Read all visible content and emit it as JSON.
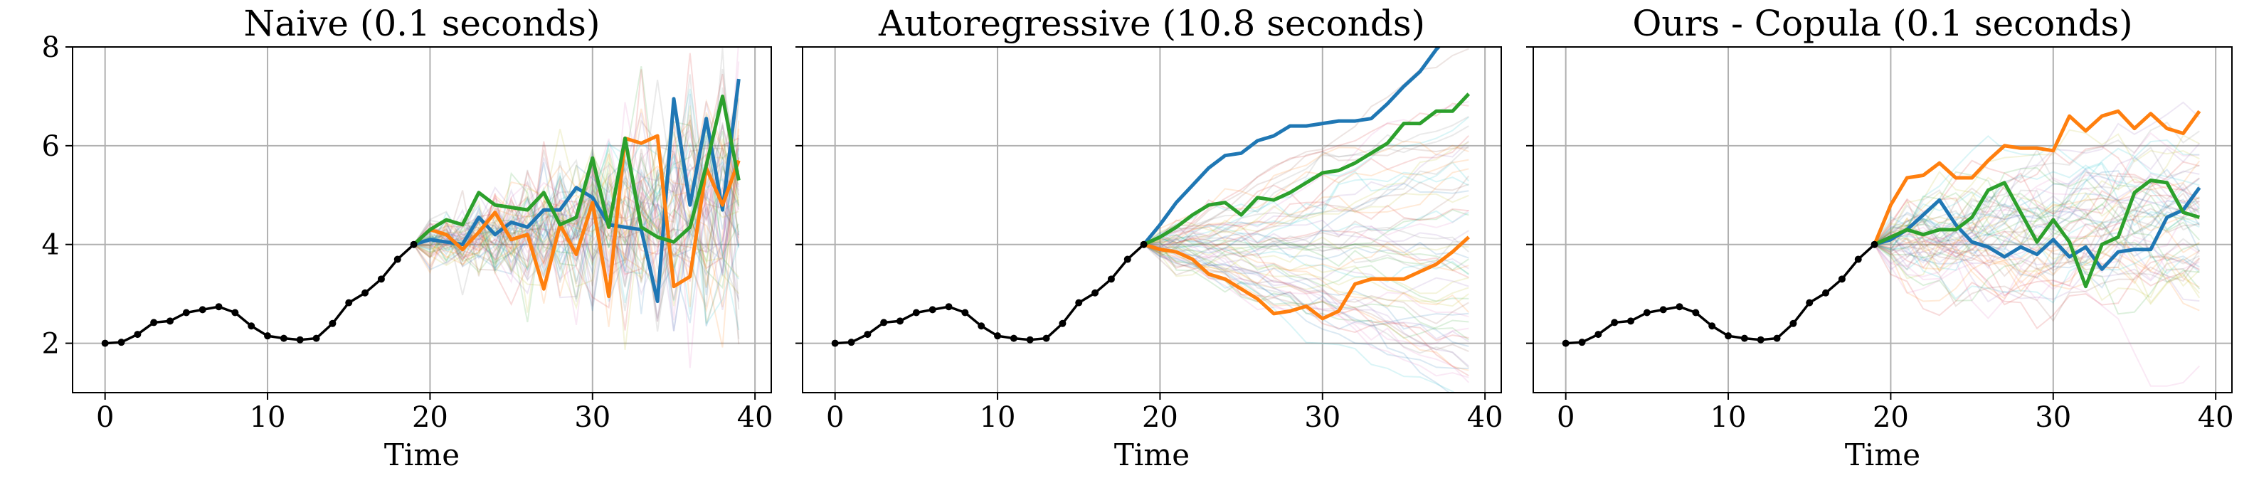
{
  "chart_data": [
    {
      "type": "line",
      "title": "Naive (0.1 seconds)",
      "xlabel": "Time",
      "ylabel": "",
      "xlim": [
        -2,
        41
      ],
      "ylim": [
        1,
        8
      ],
      "xticks": [
        0,
        10,
        20,
        30,
        40
      ],
      "yticks": [
        2,
        4,
        6,
        8
      ],
      "grid": true,
      "history": {
        "x": [
          0,
          1,
          2,
          3,
          4,
          5,
          6,
          7,
          8,
          9,
          10,
          11,
          12,
          13,
          14,
          15,
          16,
          17,
          18,
          19
        ],
        "y": [
          2.0,
          2.02,
          2.18,
          2.42,
          2.45,
          2.62,
          2.68,
          2.74,
          2.62,
          2.35,
          2.15,
          2.1,
          2.07,
          2.1,
          2.4,
          2.82,
          3.02,
          3.3,
          3.7,
          4.0
        ]
      },
      "forecast_x": [
        19,
        20,
        21,
        22,
        23,
        24,
        25,
        26,
        27,
        28,
        29,
        30,
        31,
        32,
        33,
        34,
        35,
        36,
        37,
        38,
        39
      ],
      "series": [
        {
          "color": "#1f77b4",
          "values": [
            4.0,
            4.1,
            4.05,
            4.0,
            4.55,
            4.2,
            4.45,
            4.35,
            4.7,
            4.7,
            5.15,
            4.95,
            4.4,
            4.35,
            4.3,
            2.85,
            6.95,
            4.8,
            6.55,
            4.7,
            7.35
          ]
        },
        {
          "color": "#ff7f0e",
          "values": [
            4.0,
            4.3,
            4.2,
            3.9,
            4.25,
            4.65,
            4.1,
            4.2,
            3.1,
            4.4,
            3.8,
            4.85,
            2.95,
            6.15,
            6.05,
            6.2,
            3.15,
            3.35,
            5.55,
            4.8,
            5.7
          ]
        },
        {
          "color": "#2ca02c",
          "values": [
            4.0,
            4.3,
            4.5,
            4.4,
            5.05,
            4.8,
            4.75,
            4.7,
            5.05,
            4.4,
            4.55,
            5.75,
            4.35,
            6.15,
            4.35,
            4.15,
            4.05,
            4.35,
            5.6,
            7.0,
            5.3
          ]
        }
      ]
    },
    {
      "type": "line",
      "title": "Autoregressive (10.8 seconds)",
      "xlabel": "Time",
      "ylabel": "",
      "xlim": [
        -2,
        41
      ],
      "ylim": [
        1,
        8
      ],
      "xticks": [
        0,
        10,
        20,
        30,
        40
      ],
      "yticks": [
        2,
        4,
        6,
        8
      ],
      "grid": true,
      "history": {
        "x": [
          0,
          1,
          2,
          3,
          4,
          5,
          6,
          7,
          8,
          9,
          10,
          11,
          12,
          13,
          14,
          15,
          16,
          17,
          18,
          19
        ],
        "y": [
          2.0,
          2.02,
          2.18,
          2.42,
          2.45,
          2.62,
          2.68,
          2.74,
          2.62,
          2.35,
          2.15,
          2.1,
          2.07,
          2.1,
          2.4,
          2.82,
          3.02,
          3.3,
          3.7,
          4.0
        ]
      },
      "forecast_x": [
        19,
        20,
        21,
        22,
        23,
        24,
        25,
        26,
        27,
        28,
        29,
        30,
        31,
        32,
        33,
        34,
        35,
        36,
        37,
        38,
        39
      ],
      "series": [
        {
          "color": "#1f77b4",
          "values": [
            4.0,
            4.4,
            4.85,
            5.2,
            5.55,
            5.8,
            5.85,
            6.1,
            6.2,
            6.4,
            6.4,
            6.45,
            6.5,
            6.5,
            6.55,
            6.85,
            7.2,
            7.5,
            7.95,
            8.3,
            8.6
          ]
        },
        {
          "color": "#ff7f0e",
          "values": [
            4.0,
            3.9,
            3.85,
            3.7,
            3.4,
            3.3,
            3.1,
            2.9,
            2.6,
            2.65,
            2.75,
            2.5,
            2.65,
            3.2,
            3.3,
            3.3,
            3.3,
            3.45,
            3.6,
            3.85,
            4.15
          ]
        },
        {
          "color": "#2ca02c",
          "values": [
            4.0,
            4.15,
            4.35,
            4.6,
            4.8,
            4.85,
            4.6,
            4.95,
            4.9,
            5.05,
            5.25,
            5.45,
            5.5,
            5.65,
            5.85,
            6.05,
            6.45,
            6.45,
            6.7,
            6.7,
            7.05
          ]
        }
      ]
    },
    {
      "type": "line",
      "title": "Ours - Copula (0.1 seconds)",
      "xlabel": "Time",
      "ylabel": "",
      "xlim": [
        -2,
        41
      ],
      "ylim": [
        1,
        8
      ],
      "xticks": [
        0,
        10,
        20,
        30,
        40
      ],
      "yticks": [
        2,
        4,
        6,
        8
      ],
      "grid": true,
      "history": {
        "x": [
          0,
          1,
          2,
          3,
          4,
          5,
          6,
          7,
          8,
          9,
          10,
          11,
          12,
          13,
          14,
          15,
          16,
          17,
          18,
          19
        ],
        "y": [
          2.0,
          2.02,
          2.18,
          2.42,
          2.45,
          2.62,
          2.68,
          2.74,
          2.62,
          2.35,
          2.15,
          2.1,
          2.07,
          2.1,
          2.4,
          2.82,
          3.02,
          3.3,
          3.7,
          4.0
        ]
      },
      "forecast_x": [
        19,
        20,
        21,
        22,
        23,
        24,
        25,
        26,
        27,
        28,
        29,
        30,
        31,
        32,
        33,
        34,
        35,
        36,
        37,
        38,
        39
      ],
      "series": [
        {
          "color": "#1f77b4",
          "values": [
            4.0,
            4.1,
            4.3,
            4.6,
            4.9,
            4.4,
            4.05,
            3.95,
            3.75,
            3.95,
            3.8,
            4.1,
            3.75,
            3.95,
            3.5,
            3.85,
            3.9,
            3.9,
            4.55,
            4.7,
            5.15
          ]
        },
        {
          "color": "#ff7f0e",
          "values": [
            4.0,
            4.8,
            5.35,
            5.4,
            5.65,
            5.35,
            5.35,
            5.7,
            6.0,
            5.95,
            5.95,
            5.9,
            6.6,
            6.3,
            6.6,
            6.7,
            6.35,
            6.65,
            6.35,
            6.25,
            6.7
          ]
        },
        {
          "color": "#2ca02c",
          "values": [
            4.0,
            4.15,
            4.3,
            4.2,
            4.3,
            4.3,
            4.55,
            5.1,
            5.25,
            4.65,
            4.05,
            4.5,
            4.05,
            3.15,
            4.0,
            4.15,
            5.05,
            5.3,
            5.25,
            4.65,
            4.55
          ]
        }
      ]
    }
  ]
}
